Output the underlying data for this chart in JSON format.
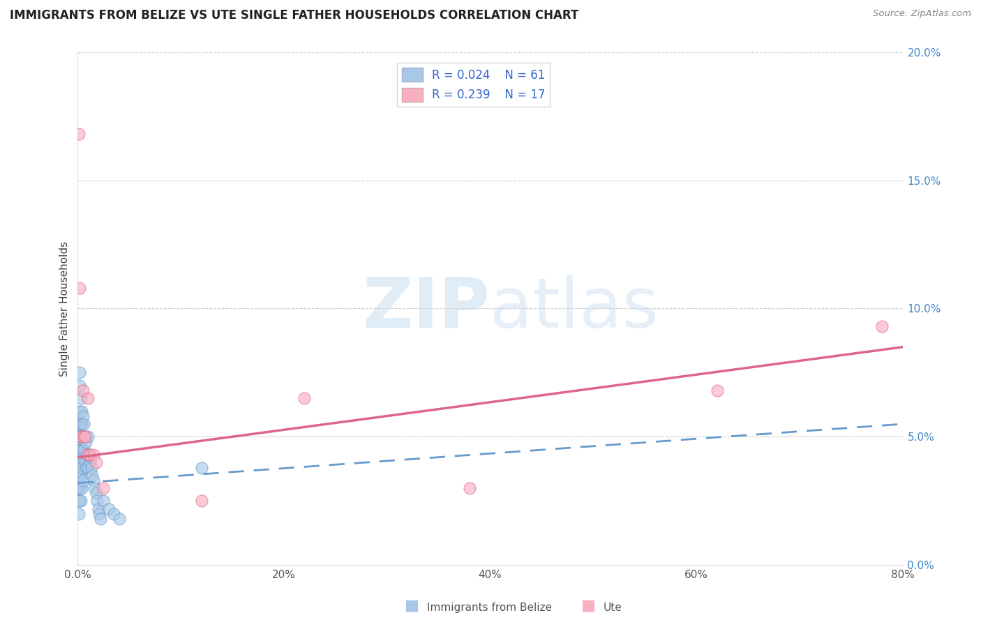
{
  "title": "IMMIGRANTS FROM BELIZE VS UTE SINGLE FATHER HOUSEHOLDS CORRELATION CHART",
  "source": "Source: ZipAtlas.com",
  "ylabel": "Single Father Households",
  "legend_label1": "Immigrants from Belize",
  "legend_label2": "Ute",
  "r1": 0.024,
  "n1": 61,
  "r2": 0.239,
  "n2": 17,
  "color1": "#a8c8e8",
  "color2": "#f8b0c0",
  "line_color1": "#6699cc",
  "line_color2": "#dd6688",
  "watermark_zip": "ZIP",
  "watermark_atlas": "atlas",
  "xlim": [
    0,
    0.8
  ],
  "ylim": [
    0,
    0.2
  ],
  "xticks": [
    0.0,
    0.2,
    0.4,
    0.6,
    0.8
  ],
  "yticks": [
    0.0,
    0.05,
    0.1,
    0.15,
    0.2
  ],
  "blue_x": [
    0.0,
    0.0,
    0.001,
    0.001,
    0.001,
    0.001,
    0.001,
    0.001,
    0.001,
    0.001,
    0.002,
    0.002,
    0.002,
    0.002,
    0.002,
    0.002,
    0.002,
    0.002,
    0.002,
    0.002,
    0.003,
    0.003,
    0.003,
    0.003,
    0.003,
    0.003,
    0.003,
    0.004,
    0.004,
    0.004,
    0.004,
    0.004,
    0.005,
    0.005,
    0.005,
    0.005,
    0.006,
    0.006,
    0.007,
    0.007,
    0.008,
    0.008,
    0.009,
    0.01,
    0.01,
    0.011,
    0.012,
    0.013,
    0.014,
    0.015,
    0.016,
    0.018,
    0.019,
    0.02,
    0.021,
    0.022,
    0.025,
    0.03,
    0.035,
    0.04,
    0.12
  ],
  "blue_y": [
    0.035,
    0.03,
    0.055,
    0.05,
    0.045,
    0.04,
    0.035,
    0.03,
    0.025,
    0.02,
    0.075,
    0.07,
    0.06,
    0.055,
    0.05,
    0.045,
    0.04,
    0.035,
    0.03,
    0.025,
    0.065,
    0.055,
    0.05,
    0.045,
    0.04,
    0.035,
    0.025,
    0.06,
    0.055,
    0.045,
    0.038,
    0.03,
    0.058,
    0.05,
    0.042,
    0.033,
    0.055,
    0.045,
    0.05,
    0.04,
    0.048,
    0.038,
    0.043,
    0.05,
    0.038,
    0.043,
    0.04,
    0.038,
    0.035,
    0.033,
    0.03,
    0.028,
    0.025,
    0.022,
    0.02,
    0.018,
    0.025,
    0.022,
    0.02,
    0.018,
    0.038
  ],
  "pink_x": [
    0.001,
    0.002,
    0.003,
    0.005,
    0.006,
    0.007,
    0.009,
    0.01,
    0.012,
    0.015,
    0.018,
    0.025,
    0.12,
    0.22,
    0.38,
    0.62,
    0.78
  ],
  "pink_y": [
    0.168,
    0.108,
    0.05,
    0.068,
    0.05,
    0.05,
    0.043,
    0.065,
    0.043,
    0.043,
    0.04,
    0.03,
    0.025,
    0.065,
    0.03,
    0.068,
    0.093
  ],
  "blue_trend_start_y": 0.032,
  "blue_trend_end_y": 0.055,
  "pink_trend_start_y": 0.042,
  "pink_trend_end_y": 0.085
}
